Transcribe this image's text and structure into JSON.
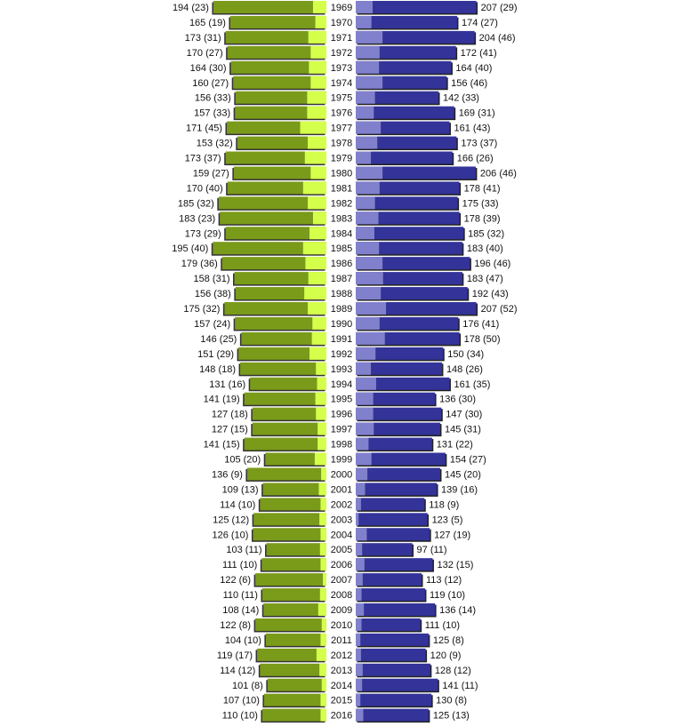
{
  "chart_data": {
    "type": "bar",
    "orientation": "horizontal-back-to-back",
    "categories": [
      "1969",
      "1970",
      "1971",
      "1972",
      "1973",
      "1974",
      "1975",
      "1976",
      "1977",
      "1978",
      "1979",
      "1980",
      "1981",
      "1982",
      "1983",
      "1984",
      "1985",
      "1986",
      "1987",
      "1988",
      "1989",
      "1990",
      "1991",
      "1992",
      "1993",
      "1994",
      "1995",
      "1996",
      "1997",
      "1998",
      "1999",
      "2000",
      "2001",
      "2002",
      "2003",
      "2004",
      "2005",
      "2006",
      "2007",
      "2008",
      "2009",
      "2010",
      "2011",
      "2012",
      "2013",
      "2014",
      "2015",
      "2016"
    ],
    "series": [
      {
        "name": "left",
        "side": "left",
        "color": "#7a9a1a",
        "sub_color": "#d4ff4a",
        "values": [
          194,
          165,
          173,
          170,
          164,
          160,
          156,
          157,
          171,
          153,
          173,
          159,
          170,
          185,
          183,
          173,
          195,
          179,
          158,
          156,
          175,
          157,
          146,
          151,
          148,
          131,
          141,
          127,
          127,
          141,
          105,
          136,
          109,
          114,
          125,
          126,
          103,
          111,
          122,
          110,
          108,
          122,
          104,
          119,
          114,
          101,
          107,
          110
        ],
        "sub_values": [
          23,
          19,
          31,
          27,
          30,
          27,
          33,
          33,
          45,
          32,
          37,
          27,
          40,
          32,
          23,
          29,
          40,
          36,
          31,
          38,
          32,
          24,
          25,
          29,
          18,
          16,
          19,
          18,
          15,
          15,
          20,
          9,
          13,
          10,
          12,
          10,
          11,
          10,
          6,
          11,
          14,
          8,
          10,
          17,
          12,
          8,
          10,
          10
        ]
      },
      {
        "name": "right",
        "side": "right",
        "color": "#333399",
        "sub_color": "#8080cc",
        "values": [
          207,
          174,
          204,
          172,
          164,
          156,
          142,
          169,
          161,
          173,
          166,
          206,
          178,
          175,
          178,
          185,
          183,
          196,
          183,
          192,
          207,
          176,
          178,
          150,
          148,
          161,
          136,
          147,
          145,
          131,
          154,
          145,
          139,
          118,
          123,
          127,
          97,
          132,
          113,
          119,
          136,
          111,
          125,
          120,
          128,
          141,
          130,
          125
        ],
        "sub_values": [
          29,
          27,
          46,
          41,
          40,
          46,
          33,
          31,
          43,
          37,
          26,
          46,
          41,
          33,
          39,
          32,
          40,
          46,
          47,
          43,
          52,
          41,
          50,
          34,
          26,
          35,
          30,
          30,
          31,
          22,
          27,
          20,
          16,
          9,
          5,
          19,
          11,
          15,
          12,
          10,
          14,
          10,
          8,
          9,
          12,
          11,
          8,
          13
        ]
      }
    ],
    "title": "",
    "xlabel": "",
    "ylabel": "",
    "xlim": [
      0,
      210
    ],
    "grid": false,
    "legend": "none"
  }
}
